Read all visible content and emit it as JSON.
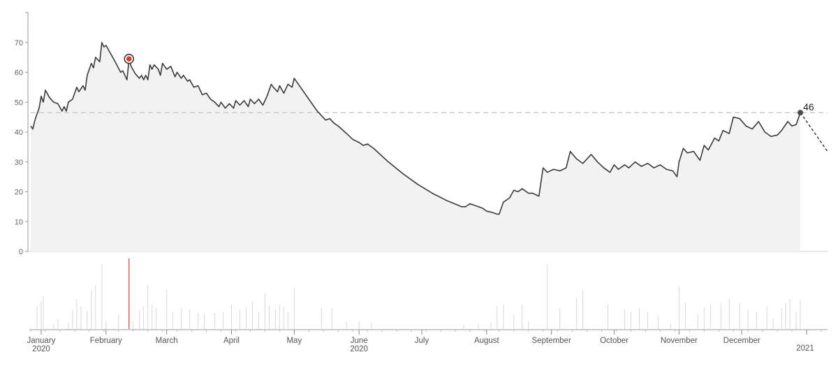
{
  "chart_data": {
    "type": "area",
    "title": "",
    "xlabel": "",
    "ylabel": "",
    "ylim": [
      0,
      80
    ],
    "yticks": [
      "0",
      "10",
      "20",
      "30",
      "40",
      "50",
      "60",
      "70"
    ],
    "reference_line": 46.5,
    "last_value_label": "46",
    "x_range": [
      "2019-12-27",
      "2021-01-11"
    ],
    "month_ticks": [
      {
        "date": "2020-01-01",
        "label": "January",
        "year": "2020"
      },
      {
        "date": "2020-02-01",
        "label": "February",
        "year": ""
      },
      {
        "date": "2020-03-01",
        "label": "March",
        "year": ""
      },
      {
        "date": "2020-04-01",
        "label": "April",
        "year": ""
      },
      {
        "date": "2020-05-01",
        "label": "May",
        "year": ""
      },
      {
        "date": "2020-06-01",
        "label": "June",
        "year": "2020"
      },
      {
        "date": "2020-07-01",
        "label": "July",
        "year": ""
      },
      {
        "date": "2020-08-01",
        "label": "August",
        "year": ""
      },
      {
        "date": "2020-09-01",
        "label": "September",
        "year": ""
      },
      {
        "date": "2020-10-01",
        "label": "October",
        "year": ""
      },
      {
        "date": "2020-11-01",
        "label": "November",
        "year": ""
      },
      {
        "date": "2020-12-01",
        "label": "December",
        "year": ""
      },
      {
        "date": "2021-01-01",
        "label": "",
        "year": "2021"
      }
    ],
    "series": [
      {
        "points": [
          [
            "2019-12-27",
            42
          ],
          [
            "2019-12-28",
            41
          ],
          [
            "2019-12-29",
            44
          ],
          [
            "2019-12-31",
            48
          ],
          [
            "2020-01-01",
            52
          ],
          [
            "2020-01-02",
            50
          ],
          [
            "2020-01-03",
            54
          ],
          [
            "2020-01-05",
            51.5
          ],
          [
            "2020-01-07",
            50
          ],
          [
            "2020-01-09",
            49.5
          ],
          [
            "2020-01-11",
            47
          ],
          [
            "2020-01-12",
            48.5
          ],
          [
            "2020-01-13",
            47
          ],
          [
            "2020-01-14",
            50
          ],
          [
            "2020-01-16",
            51
          ],
          [
            "2020-01-18",
            55
          ],
          [
            "2020-01-19",
            53.5
          ],
          [
            "2020-01-21",
            55.5
          ],
          [
            "2020-01-22",
            54
          ],
          [
            "2020-01-23",
            59
          ],
          [
            "2020-01-25",
            63
          ],
          [
            "2020-01-26",
            61.5
          ],
          [
            "2020-01-27",
            65
          ],
          [
            "2020-01-29",
            63.5
          ],
          [
            "2020-01-30",
            70
          ],
          [
            "2020-01-31",
            68.5
          ],
          [
            "2020-02-01",
            69
          ],
          [
            "2020-02-05",
            64
          ],
          [
            "2020-02-08",
            60
          ],
          [
            "2020-02-09",
            60.5
          ],
          [
            "2020-02-11",
            57.5
          ],
          [
            "2020-02-12",
            64.5
          ],
          [
            "2020-02-13",
            62
          ],
          [
            "2020-02-15",
            59.5
          ],
          [
            "2020-02-17",
            58
          ],
          [
            "2020-02-18",
            59
          ],
          [
            "2020-02-19",
            57.5
          ],
          [
            "2020-02-20",
            59
          ],
          [
            "2020-02-21",
            57.5
          ],
          [
            "2020-02-22",
            62.5
          ],
          [
            "2020-02-23",
            61
          ],
          [
            "2020-02-24",
            62.5
          ],
          [
            "2020-02-26",
            61
          ],
          [
            "2020-02-27",
            59
          ],
          [
            "2020-02-28",
            63
          ],
          [
            "2020-03-01",
            61
          ],
          [
            "2020-03-03",
            62
          ],
          [
            "2020-03-05",
            58.5
          ],
          [
            "2020-03-06",
            60
          ],
          [
            "2020-03-08",
            58
          ],
          [
            "2020-03-09",
            59
          ],
          [
            "2020-03-11",
            57
          ],
          [
            "2020-03-12",
            57.5
          ],
          [
            "2020-03-14",
            55
          ],
          [
            "2020-03-16",
            55.5
          ],
          [
            "2020-03-18",
            52.5
          ],
          [
            "2020-03-20",
            53
          ],
          [
            "2020-03-22",
            51
          ],
          [
            "2020-03-24",
            50
          ],
          [
            "2020-03-26",
            48.5
          ],
          [
            "2020-03-27",
            50
          ],
          [
            "2020-03-29",
            48
          ],
          [
            "2020-03-31",
            49.5
          ],
          [
            "2020-04-02",
            48
          ],
          [
            "2020-04-03",
            50.5
          ],
          [
            "2020-04-05",
            49
          ],
          [
            "2020-04-07",
            50.5
          ],
          [
            "2020-04-09",
            48.5
          ],
          [
            "2020-04-10",
            51
          ],
          [
            "2020-04-12",
            49.5
          ],
          [
            "2020-04-14",
            51
          ],
          [
            "2020-04-16",
            49
          ],
          [
            "2020-04-18",
            52
          ],
          [
            "2020-04-20",
            56
          ],
          [
            "2020-04-21",
            55
          ],
          [
            "2020-04-23",
            53.5
          ],
          [
            "2020-04-24",
            55.5
          ],
          [
            "2020-04-26",
            53
          ],
          [
            "2020-04-28",
            56
          ],
          [
            "2020-04-30",
            55
          ],
          [
            "2020-05-01",
            58
          ],
          [
            "2020-05-04",
            55
          ],
          [
            "2020-05-08",
            51
          ],
          [
            "2020-05-12",
            47
          ],
          [
            "2020-05-16",
            44
          ],
          [
            "2020-05-18",
            44.5
          ],
          [
            "2020-05-20",
            43
          ],
          [
            "2020-05-22",
            42
          ],
          [
            "2020-05-26",
            39.5
          ],
          [
            "2020-05-29",
            37.5
          ],
          [
            "2020-06-01",
            36.5
          ],
          [
            "2020-06-03",
            35.5
          ],
          [
            "2020-06-05",
            36
          ],
          [
            "2020-06-08",
            34.5
          ],
          [
            "2020-06-15",
            30
          ],
          [
            "2020-06-22",
            26
          ],
          [
            "2020-06-29",
            22.5
          ],
          [
            "2020-07-06",
            19.5
          ],
          [
            "2020-07-13",
            17
          ],
          [
            "2020-07-20",
            15
          ],
          [
            "2020-07-22",
            15
          ],
          [
            "2020-07-24",
            16
          ],
          [
            "2020-07-26",
            15.5
          ],
          [
            "2020-07-28",
            15
          ],
          [
            "2020-07-30",
            14.5
          ],
          [
            "2020-08-01",
            13.5
          ],
          [
            "2020-08-04",
            13
          ],
          [
            "2020-08-06",
            12.5
          ],
          [
            "2020-08-07",
            12.5
          ],
          [
            "2020-08-09",
            16.5
          ],
          [
            "2020-08-12",
            18
          ],
          [
            "2020-08-14",
            20.5
          ],
          [
            "2020-08-16",
            20
          ],
          [
            "2020-08-18",
            21
          ],
          [
            "2020-08-21",
            19.5
          ],
          [
            "2020-08-23",
            19.5
          ],
          [
            "2020-08-26",
            18.5
          ],
          [
            "2020-08-28",
            28
          ],
          [
            "2020-08-30",
            26.5
          ],
          [
            "2020-09-02",
            27.5
          ],
          [
            "2020-09-05",
            27
          ],
          [
            "2020-09-08",
            28
          ],
          [
            "2020-09-10",
            33.5
          ],
          [
            "2020-09-13",
            31
          ],
          [
            "2020-09-16",
            29.5
          ],
          [
            "2020-09-18",
            31
          ],
          [
            "2020-09-20",
            32.5
          ],
          [
            "2020-09-23",
            30
          ],
          [
            "2020-09-26",
            28
          ],
          [
            "2020-09-29",
            26.5
          ],
          [
            "2020-10-01",
            29
          ],
          [
            "2020-10-03",
            27.5
          ],
          [
            "2020-10-06",
            29
          ],
          [
            "2020-10-08",
            28
          ],
          [
            "2020-10-11",
            30
          ],
          [
            "2020-10-14",
            28.5
          ],
          [
            "2020-10-17",
            29.5
          ],
          [
            "2020-10-20",
            28
          ],
          [
            "2020-10-23",
            29
          ],
          [
            "2020-10-26",
            27.5
          ],
          [
            "2020-10-29",
            27
          ],
          [
            "2020-10-31",
            25
          ],
          [
            "2020-11-01",
            30
          ],
          [
            "2020-11-03",
            34.5
          ],
          [
            "2020-11-05",
            33
          ],
          [
            "2020-11-08",
            33.5
          ],
          [
            "2020-11-11",
            30.5
          ],
          [
            "2020-11-13",
            35.5
          ],
          [
            "2020-11-15",
            34
          ],
          [
            "2020-11-18",
            38
          ],
          [
            "2020-11-20",
            37
          ],
          [
            "2020-11-22",
            40.5
          ],
          [
            "2020-11-25",
            39.5
          ],
          [
            "2020-11-27",
            45
          ],
          [
            "2020-11-30",
            44.5
          ],
          [
            "2020-12-03",
            42
          ],
          [
            "2020-12-06",
            41
          ],
          [
            "2020-12-09",
            43.5
          ],
          [
            "2020-12-12",
            40
          ],
          [
            "2020-12-15",
            38.5
          ],
          [
            "2020-12-18",
            39
          ],
          [
            "2020-12-20",
            40.5
          ],
          [
            "2020-12-23",
            43.5
          ],
          [
            "2020-12-25",
            42
          ],
          [
            "2020-12-27",
            42.5
          ],
          [
            "2020-12-29",
            46.5
          ]
        ]
      }
    ],
    "forecast": [
      [
        "2020-12-29",
        46.5
      ],
      [
        "2021-01-11",
        33.5
      ]
    ],
    "highlight_point": [
      "2020-02-12",
      64.5
    ],
    "volume": {
      "max": 100,
      "highlight_date": "2020-02-12",
      "bars": [
        [
          "2019-12-30",
          35
        ],
        [
          "2020-01-01",
          42
        ],
        [
          "2020-01-02",
          50
        ],
        [
          "2020-01-07",
          8
        ],
        [
          "2020-01-09",
          15
        ],
        [
          "2020-01-14",
          10
        ],
        [
          "2020-01-16",
          30
        ],
        [
          "2020-01-18",
          46
        ],
        [
          "2020-01-20",
          35
        ],
        [
          "2020-01-23",
          28
        ],
        [
          "2020-01-25",
          60
        ],
        [
          "2020-01-27",
          68
        ],
        [
          "2020-01-30",
          100
        ],
        [
          "2020-02-01",
          12
        ],
        [
          "2020-02-07",
          22
        ],
        [
          "2020-02-14",
          12
        ],
        [
          "2020-02-17",
          30
        ],
        [
          "2020-02-19",
          35
        ],
        [
          "2020-02-21",
          68
        ],
        [
          "2020-02-23",
          38
        ],
        [
          "2020-02-25",
          32
        ],
        [
          "2020-03-01",
          60
        ],
        [
          "2020-03-04",
          26
        ],
        [
          "2020-03-08",
          32
        ],
        [
          "2020-03-12",
          30
        ],
        [
          "2020-03-16",
          25
        ],
        [
          "2020-03-19",
          22
        ],
        [
          "2020-03-24",
          25
        ],
        [
          "2020-03-28",
          26
        ],
        [
          "2020-04-01",
          38
        ],
        [
          "2020-04-05",
          30
        ],
        [
          "2020-04-08",
          34
        ],
        [
          "2020-04-11",
          42
        ],
        [
          "2020-04-14",
          26
        ],
        [
          "2020-04-17",
          55
        ],
        [
          "2020-04-19",
          36
        ],
        [
          "2020-04-22",
          30
        ],
        [
          "2020-04-24",
          38
        ],
        [
          "2020-04-26",
          34
        ],
        [
          "2020-04-28",
          26
        ],
        [
          "2020-05-01",
          64
        ],
        [
          "2020-05-14",
          32
        ],
        [
          "2020-05-19",
          32
        ],
        [
          "2020-05-26",
          12
        ],
        [
          "2020-06-01",
          12
        ],
        [
          "2020-06-07",
          10
        ],
        [
          "2020-07-21",
          6
        ],
        [
          "2020-07-28",
          8
        ],
        [
          "2020-08-03",
          10
        ],
        [
          "2020-08-06",
          35
        ],
        [
          "2020-08-09",
          38
        ],
        [
          "2020-08-14",
          22
        ],
        [
          "2020-08-18",
          38
        ],
        [
          "2020-08-21",
          12
        ],
        [
          "2020-08-30",
          100
        ],
        [
          "2020-09-05",
          32
        ],
        [
          "2020-09-13",
          48
        ],
        [
          "2020-09-16",
          60
        ],
        [
          "2020-09-28",
          38
        ],
        [
          "2020-10-06",
          30
        ],
        [
          "2020-10-09",
          26
        ],
        [
          "2020-10-13",
          32
        ],
        [
          "2020-10-17",
          26
        ],
        [
          "2020-10-22",
          20
        ],
        [
          "2020-10-28",
          8
        ],
        [
          "2020-11-01",
          65
        ],
        [
          "2020-11-04",
          40
        ],
        [
          "2020-11-10",
          24
        ],
        [
          "2020-11-13",
          34
        ],
        [
          "2020-11-16",
          38
        ],
        [
          "2020-11-21",
          40
        ],
        [
          "2020-11-25",
          46
        ],
        [
          "2020-11-30",
          40
        ],
        [
          "2020-12-04",
          30
        ],
        [
          "2020-12-08",
          26
        ],
        [
          "2020-12-13",
          35
        ],
        [
          "2020-12-16",
          16
        ],
        [
          "2020-12-20",
          32
        ],
        [
          "2020-12-22",
          40
        ],
        [
          "2020-12-24",
          46
        ],
        [
          "2020-12-27",
          26
        ],
        [
          "2020-12-29",
          44
        ]
      ]
    }
  }
}
